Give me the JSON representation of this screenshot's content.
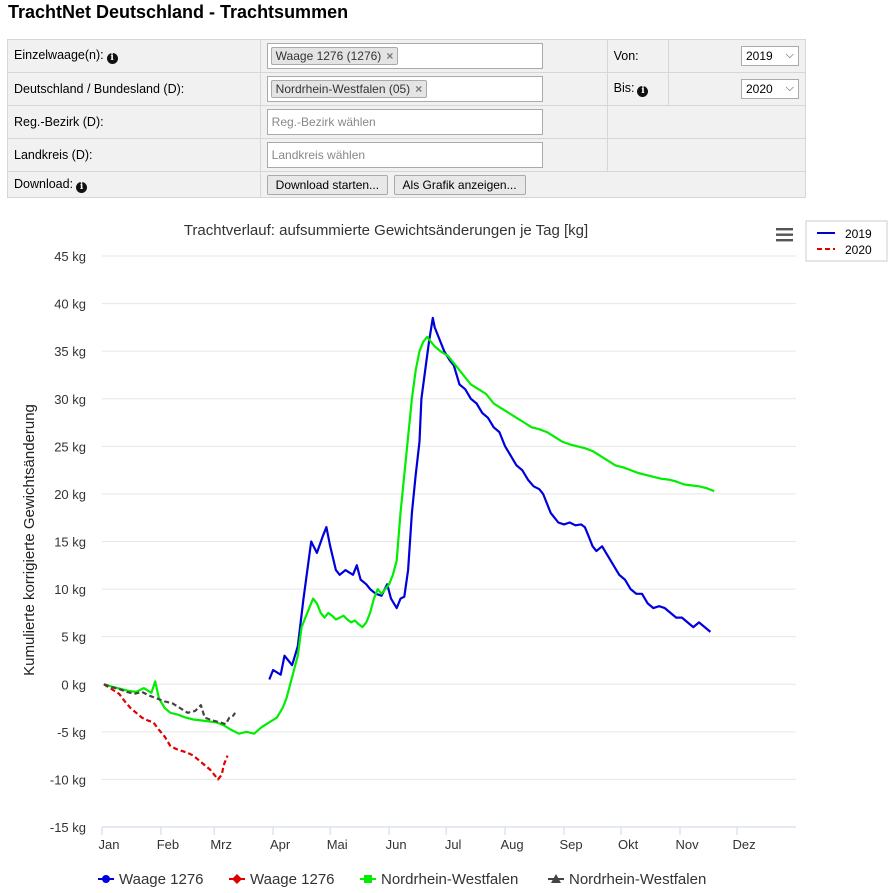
{
  "page_title": "TrachtNet Deutschland - Trachtsummen",
  "form": {
    "row1_label": "Einzelwaage(n):",
    "row1_tag": "Waage 1276 (1276)",
    "row1_tag_remove": "×",
    "row2_label": "Deutschland / Bundesland (D):",
    "row2_tag": "Nordrhein-Westfalen (05)",
    "row2_tag_remove": "×",
    "row3_label": "Reg.-Bezirk (D):",
    "row3_placeholder": "Reg.-Bezirk wählen",
    "row4_label": "Landkreis (D):",
    "row4_placeholder": "Landkreis wählen",
    "download_label": "Download:",
    "von_label": "Von:",
    "von_value": "2019",
    "bis_label": "Bis:",
    "bis_value": "2020",
    "download_button": "Download starten...",
    "graph_button": "Als Grafik anzeigen...",
    "info_glyph": "i",
    "dropdown_glyph": "⌵"
  },
  "chart_data": {
    "type": "line",
    "title": "Trachtverlauf: aufsummierte Gewichtsänderungen je Tag [kg]",
    "ylabel": "Kumulierte korrigierte Gewichtsänderung",
    "xlabel": "",
    "ylim": [
      -15,
      45
    ],
    "yticks": [
      45,
      40,
      35,
      30,
      25,
      20,
      15,
      10,
      5,
      0,
      -5,
      -10,
      -15
    ],
    "ytick_labels": [
      "45 kg",
      "40 kg",
      "35 kg",
      "30 kg",
      "25 kg",
      "20 kg",
      "15 kg",
      "10 kg",
      "5 kg",
      "0 kg",
      "-5 kg",
      "-10 kg",
      "-15 kg"
    ],
    "x_unit": "day of year",
    "xlim": [
      0,
      365
    ],
    "month_labels": [
      "Jan",
      "Feb",
      "Mrz",
      "Apr",
      "Mai",
      "Jun",
      "Jul",
      "Aug",
      "Sep",
      "Okt",
      "Nov",
      "Dez"
    ],
    "month_days": [
      0,
      31,
      59,
      90,
      120,
      151,
      181,
      212,
      243,
      273,
      304,
      334
    ],
    "grid": true,
    "year_legend": [
      {
        "label": "2019",
        "color": "#0000cc",
        "dash": false
      },
      {
        "label": "2020",
        "color": "#e00000",
        "dash": true
      }
    ],
    "menu_icon": "hamburger-menu-icon",
    "series": [
      {
        "name": "Waage 1276",
        "year": "2019",
        "color": "#0000dd",
        "dash": false,
        "marker": "circle",
        "points": [
          [
            88,
            0.5
          ],
          [
            90,
            1.5
          ],
          [
            94,
            1.0
          ],
          [
            96,
            3.0
          ],
          [
            100,
            2.0
          ],
          [
            103,
            4.0
          ],
          [
            106,
            9.0
          ],
          [
            110,
            15.0
          ],
          [
            113,
            13.8
          ],
          [
            116,
            15.5
          ],
          [
            118,
            16.5
          ],
          [
            120,
            14.5
          ],
          [
            123,
            12.0
          ],
          [
            125,
            11.5
          ],
          [
            128,
            12.0
          ],
          [
            132,
            11.5
          ],
          [
            134,
            12.5
          ],
          [
            136,
            11.0
          ],
          [
            139,
            10.5
          ],
          [
            141,
            10.0
          ],
          [
            144,
            9.5
          ],
          [
            147,
            9.3
          ],
          [
            150,
            10.5
          ],
          [
            152,
            9.0
          ],
          [
            155,
            8.0
          ],
          [
            157,
            9.0
          ],
          [
            159,
            9.2
          ],
          [
            161,
            12.0
          ],
          [
            163,
            18.0
          ],
          [
            165,
            22.0
          ],
          [
            167,
            25.5
          ],
          [
            168,
            30.0
          ],
          [
            170,
            33.0
          ],
          [
            172,
            36.0
          ],
          [
            174,
            38.5
          ],
          [
            175,
            37.5
          ],
          [
            177,
            36.5
          ],
          [
            180,
            35.0
          ],
          [
            183,
            34.0
          ],
          [
            185,
            33.5
          ],
          [
            188,
            31.5
          ],
          [
            191,
            31.0
          ],
          [
            194,
            30.0
          ],
          [
            197,
            29.5
          ],
          [
            200,
            28.5
          ],
          [
            203,
            28.0
          ],
          [
            206,
            27.0
          ],
          [
            209,
            26.5
          ],
          [
            212,
            25.0
          ],
          [
            215,
            24.0
          ],
          [
            218,
            23.0
          ],
          [
            221,
            22.5
          ],
          [
            224,
            21.5
          ],
          [
            227,
            20.8
          ],
          [
            230,
            20.5
          ],
          [
            232,
            20.0
          ],
          [
            234,
            19.0
          ],
          [
            236,
            18.0
          ],
          [
            238,
            17.5
          ],
          [
            240,
            17.0
          ],
          [
            243,
            16.8
          ],
          [
            246,
            17.0
          ],
          [
            249,
            16.7
          ],
          [
            252,
            16.8
          ],
          [
            254,
            16.5
          ],
          [
            256,
            15.5
          ],
          [
            258,
            14.5
          ],
          [
            260,
            14.0
          ],
          [
            263,
            14.5
          ],
          [
            266,
            13.5
          ],
          [
            269,
            12.5
          ],
          [
            272,
            11.5
          ],
          [
            275,
            11.0
          ],
          [
            278,
            10.0
          ],
          [
            281,
            9.5
          ],
          [
            284,
            9.5
          ],
          [
            287,
            8.5
          ],
          [
            290,
            8.0
          ],
          [
            293,
            8.2
          ],
          [
            296,
            8.0
          ],
          [
            299,
            7.5
          ],
          [
            302,
            7.0
          ],
          [
            305,
            7.0
          ],
          [
            308,
            6.5
          ],
          [
            311,
            6.0
          ],
          [
            314,
            6.5
          ],
          [
            317,
            6.0
          ],
          [
            320,
            5.5
          ]
        ]
      },
      {
        "name": "Waage 1276",
        "year": "2020",
        "color": "#e00000",
        "dash": true,
        "marker": "diamond",
        "points": [
          [
            1,
            0.0
          ],
          [
            5,
            -0.5
          ],
          [
            9,
            -1.0
          ],
          [
            12,
            -1.8
          ],
          [
            15,
            -2.5
          ],
          [
            18,
            -3.0
          ],
          [
            21,
            -3.5
          ],
          [
            24,
            -3.8
          ],
          [
            27,
            -4.0
          ],
          [
            30,
            -4.8
          ],
          [
            33,
            -5.5
          ],
          [
            36,
            -6.5
          ],
          [
            39,
            -6.8
          ],
          [
            42,
            -7.0
          ],
          [
            45,
            -7.2
          ],
          [
            48,
            -7.5
          ],
          [
            51,
            -8.0
          ],
          [
            54,
            -8.5
          ],
          [
            57,
            -9.0
          ],
          [
            59,
            -9.5
          ],
          [
            61,
            -10.0
          ],
          [
            63,
            -9.5
          ],
          [
            64,
            -8.5
          ],
          [
            66,
            -7.5
          ]
        ]
      },
      {
        "name": "Nordrhein-Westfalen",
        "year": "2019",
        "color": "#00ee00",
        "dash": false,
        "marker": "square",
        "points": [
          [
            1,
            0.0
          ],
          [
            6,
            -0.3
          ],
          [
            10,
            -0.5
          ],
          [
            14,
            -0.7
          ],
          [
            18,
            -0.8
          ],
          [
            22,
            -0.4
          ],
          [
            26,
            -0.9
          ],
          [
            28,
            0.3
          ],
          [
            30,
            -1.5
          ],
          [
            33,
            -2.5
          ],
          [
            36,
            -3.0
          ],
          [
            40,
            -3.2
          ],
          [
            44,
            -3.5
          ],
          [
            48,
            -3.7
          ],
          [
            52,
            -3.8
          ],
          [
            56,
            -3.9
          ],
          [
            60,
            -4.0
          ],
          [
            64,
            -4.3
          ],
          [
            68,
            -4.8
          ],
          [
            72,
            -5.2
          ],
          [
            76,
            -5.0
          ],
          [
            80,
            -5.2
          ],
          [
            84,
            -4.5
          ],
          [
            88,
            -4.0
          ],
          [
            92,
            -3.5
          ],
          [
            95,
            -2.5
          ],
          [
            97,
            -1.5
          ],
          [
            99,
            0.0
          ],
          [
            101,
            1.5
          ],
          [
            103,
            3.0
          ],
          [
            105,
            6.0
          ],
          [
            107,
            7.0
          ],
          [
            109,
            8.0
          ],
          [
            111,
            9.0
          ],
          [
            113,
            8.5
          ],
          [
            115,
            7.5
          ],
          [
            117,
            7.0
          ],
          [
            119,
            7.5
          ],
          [
            121,
            7.2
          ],
          [
            123,
            6.8
          ],
          [
            125,
            7.0
          ],
          [
            127,
            7.2
          ],
          [
            129,
            6.8
          ],
          [
            131,
            6.5
          ],
          [
            133,
            6.7
          ],
          [
            135,
            6.3
          ],
          [
            137,
            6.0
          ],
          [
            139,
            6.5
          ],
          [
            141,
            7.5
          ],
          [
            143,
            9.0
          ],
          [
            145,
            10.0
          ],
          [
            147,
            9.5
          ],
          [
            149,
            10.0
          ],
          [
            151,
            10.5
          ],
          [
            153,
            11.5
          ],
          [
            155,
            13.0
          ],
          [
            157,
            18.0
          ],
          [
            159,
            22.0
          ],
          [
            161,
            26.0
          ],
          [
            163,
            30.0
          ],
          [
            165,
            33.0
          ],
          [
            167,
            35.0
          ],
          [
            169,
            36.0
          ],
          [
            171,
            36.5
          ],
          [
            173,
            36.0
          ],
          [
            175,
            35.5
          ],
          [
            178,
            35.0
          ],
          [
            182,
            34.5
          ],
          [
            186,
            33.5
          ],
          [
            190,
            32.5
          ],
          [
            194,
            31.5
          ],
          [
            198,
            31.0
          ],
          [
            202,
            30.5
          ],
          [
            206,
            29.5
          ],
          [
            210,
            29.0
          ],
          [
            214,
            28.5
          ],
          [
            218,
            28.0
          ],
          [
            222,
            27.5
          ],
          [
            226,
            27.0
          ],
          [
            230,
            26.8
          ],
          [
            234,
            26.5
          ],
          [
            238,
            26.0
          ],
          [
            242,
            25.5
          ],
          [
            246,
            25.2
          ],
          [
            250,
            25.0
          ],
          [
            254,
            24.8
          ],
          [
            258,
            24.5
          ],
          [
            262,
            24.0
          ],
          [
            266,
            23.5
          ],
          [
            270,
            23.0
          ],
          [
            274,
            22.8
          ],
          [
            278,
            22.5
          ],
          [
            282,
            22.2
          ],
          [
            286,
            22.0
          ],
          [
            290,
            21.8
          ],
          [
            294,
            21.6
          ],
          [
            298,
            21.5
          ],
          [
            302,
            21.3
          ],
          [
            306,
            21.0
          ],
          [
            310,
            20.9
          ],
          [
            314,
            20.8
          ],
          [
            318,
            20.6
          ],
          [
            322,
            20.3
          ]
        ]
      },
      {
        "name": "Nordrhein-Westfalen",
        "year": "2020",
        "color": "#444444",
        "dash": true,
        "marker": "triangle",
        "points": [
          [
            1,
            0.0
          ],
          [
            5,
            -0.3
          ],
          [
            9,
            -0.5
          ],
          [
            13,
            -0.8
          ],
          [
            17,
            -1.0
          ],
          [
            21,
            -0.8
          ],
          [
            25,
            -1.2
          ],
          [
            29,
            -1.5
          ],
          [
            33,
            -1.8
          ],
          [
            37,
            -2.0
          ],
          [
            41,
            -2.5
          ],
          [
            45,
            -3.0
          ],
          [
            49,
            -2.8
          ],
          [
            52,
            -2.2
          ],
          [
            54,
            -3.5
          ],
          [
            58,
            -3.8
          ],
          [
            62,
            -4.0
          ],
          [
            65,
            -4.2
          ],
          [
            67,
            -3.5
          ],
          [
            69,
            -3.3
          ],
          [
            70,
            -3.0
          ]
        ]
      }
    ]
  }
}
